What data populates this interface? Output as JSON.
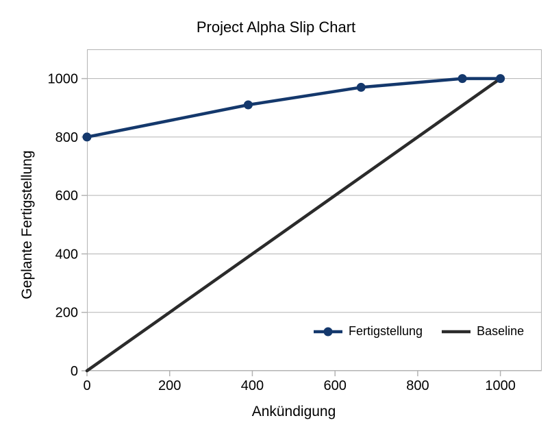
{
  "chart_data": {
    "type": "line",
    "title": "Project Alpha Slip Chart",
    "xlabel": "Ankündigung",
    "ylabel": "Geplante Fertigstellung",
    "xlim": [
      0,
      1100
    ],
    "ylim": [
      0,
      1100
    ],
    "x_ticks": [
      0,
      200,
      400,
      600,
      800,
      1000
    ],
    "y_ticks": [
      0,
      200,
      400,
      600,
      800,
      1000
    ],
    "grid": {
      "horizontal": true,
      "vertical": false
    },
    "legend_position": "inside-bottom-right",
    "series": [
      {
        "name": "Fertigstellung",
        "color": "#14386c",
        "marker": "circle",
        "marker_radius": 6.5,
        "line_width": 4.5,
        "points": [
          [
            0,
            800
          ],
          [
            390,
            910
          ],
          [
            663,
            970
          ],
          [
            908,
            1000
          ],
          [
            1000,
            1000
          ]
        ]
      },
      {
        "name": "Baseline",
        "color": "#2b2b2b",
        "marker": "none",
        "marker_radius": 0,
        "line_width": 4.5,
        "points": [
          [
            0,
            0
          ],
          [
            1000,
            1000
          ]
        ]
      }
    ],
    "colors": {
      "background": "#ffffff",
      "plot_border": "#b3b3b3",
      "gridline": "#b3b3b3",
      "tick": "#b3b3b3",
      "text": "#000000"
    }
  }
}
